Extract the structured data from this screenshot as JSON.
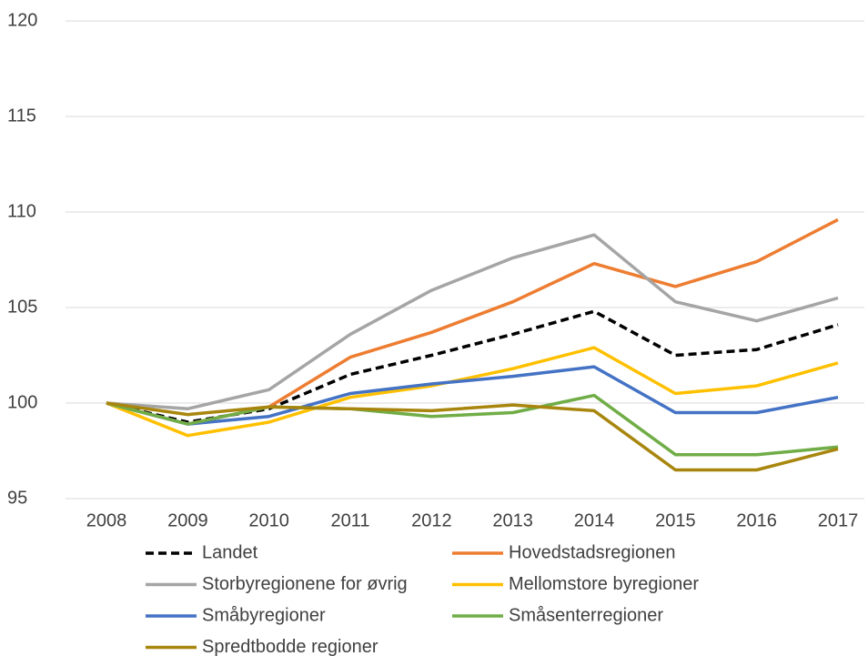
{
  "chart_data": {
    "type": "line",
    "categories": [
      "2008",
      "2009",
      "2010",
      "2011",
      "2012",
      "2013",
      "2014",
      "2015",
      "2016",
      "2017"
    ],
    "series": [
      {
        "name": "Landet",
        "color": "#000000",
        "dashed": true,
        "values": [
          100,
          99.0,
          99.7,
          101.5,
          102.5,
          103.6,
          104.8,
          102.5,
          102.8,
          104.1
        ]
      },
      {
        "name": "Hovedstadsregionen",
        "color": "#ed7d31",
        "values": [
          100,
          98.9,
          99.8,
          102.4,
          103.7,
          105.3,
          107.3,
          106.1,
          107.4,
          109.6
        ]
      },
      {
        "name": "Storbyregionene for øvrig",
        "color": "#a5a5a5",
        "values": [
          100,
          99.7,
          100.7,
          103.6,
          105.9,
          107.6,
          108.8,
          105.3,
          104.3,
          105.5
        ]
      },
      {
        "name": "Mellomstore byregioner",
        "color": "#ffc000",
        "values": [
          100,
          98.3,
          99.0,
          100.3,
          100.9,
          101.8,
          102.9,
          100.5,
          100.9,
          102.1
        ]
      },
      {
        "name": "Småbyregioner",
        "color": "#4472c4",
        "values": [
          100,
          98.9,
          99.3,
          100.5,
          101.0,
          101.4,
          101.9,
          99.5,
          99.5,
          100.3
        ]
      },
      {
        "name": "Småsenterregioner",
        "color": "#70ad47",
        "values": [
          100,
          98.9,
          99.8,
          99.7,
          99.3,
          99.5,
          100.4,
          97.3,
          97.3,
          97.7
        ]
      },
      {
        "name": "Spredtbodde regioner",
        "color": "#a8860e",
        "values": [
          100,
          99.4,
          99.8,
          99.7,
          99.6,
          99.9,
          99.6,
          96.5,
          96.5,
          97.6
        ]
      }
    ],
    "ylim": [
      95,
      120
    ],
    "yticks": [
      95,
      100,
      105,
      110,
      115,
      120
    ],
    "grid": true
  }
}
